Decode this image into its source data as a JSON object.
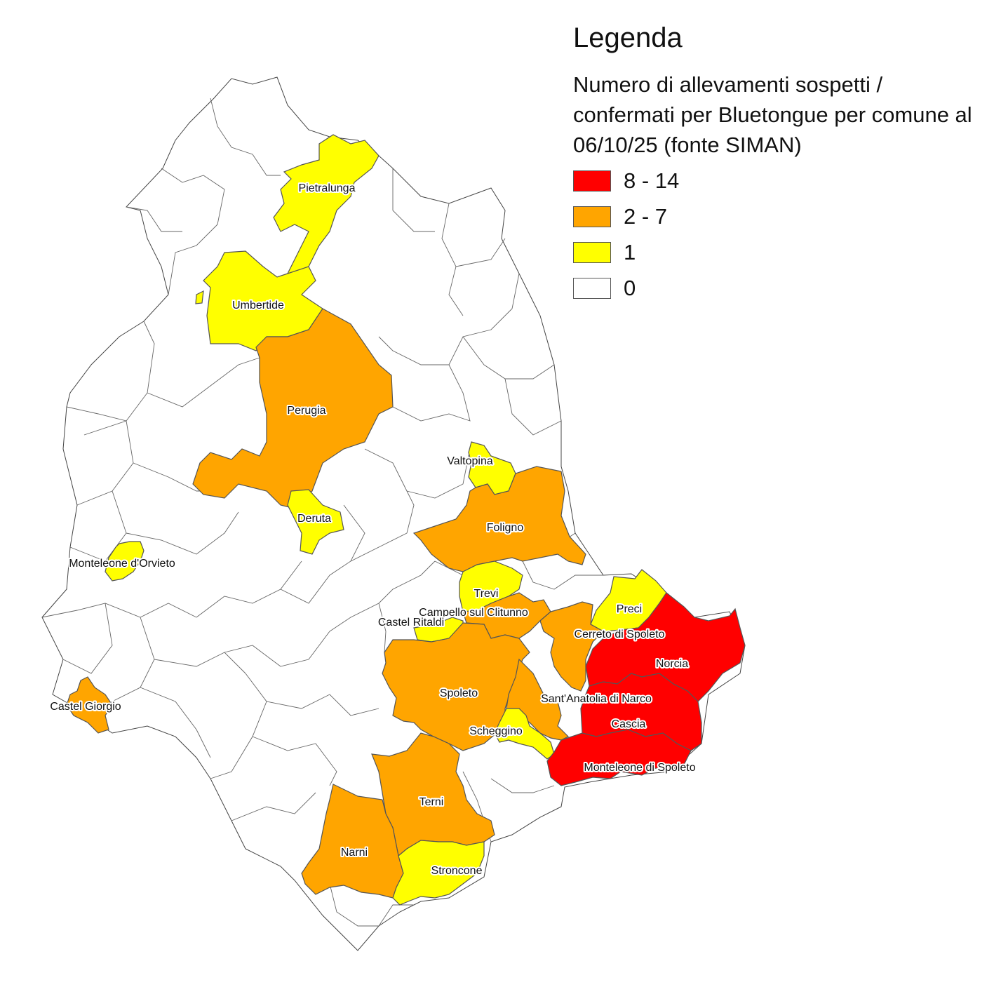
{
  "legend": {
    "title": "Legenda",
    "subtitle": "Numero di allevamenti sospetti / confermati per Bluetongue per comune al 06/10/25 (fonte SIMAN)",
    "classes": [
      {
        "label": "8 - 14",
        "color": "#ff0000"
      },
      {
        "label": "2 - 7",
        "color": "#ffa500"
      },
      {
        "label": "1",
        "color": "#ffff00"
      },
      {
        "label": "0",
        "color": "#ffffff"
      }
    ]
  },
  "comuni": [
    {
      "name": "Pietralunga",
      "class": "1"
    },
    {
      "name": "Umbertide",
      "class": "1"
    },
    {
      "name": "Perugia",
      "class": "2 - 7"
    },
    {
      "name": "Valtopina",
      "class": "1"
    },
    {
      "name": "Deruta",
      "class": "1"
    },
    {
      "name": "Foligno",
      "class": "2 - 7"
    },
    {
      "name": "Monteleone d'Orvieto",
      "class": "1"
    },
    {
      "name": "Trevi",
      "class": "1"
    },
    {
      "name": "Preci",
      "class": "1"
    },
    {
      "name": "Campello sul Clitunno",
      "class": "2 - 7"
    },
    {
      "name": "Castel Ritaldi",
      "class": "1"
    },
    {
      "name": "Cerreto di Spoleto",
      "class": "2 - 7"
    },
    {
      "name": "Norcia",
      "class": "8 - 14"
    },
    {
      "name": "Spoleto",
      "class": "2 - 7"
    },
    {
      "name": "Castel Giorgio",
      "class": "2 - 7"
    },
    {
      "name": "Sant'Anatolia di Narco",
      "class": "2 - 7"
    },
    {
      "name": "Scheggino",
      "class": "1"
    },
    {
      "name": "Cascia",
      "class": "8 - 14"
    },
    {
      "name": "Monteleone di Spoleto",
      "class": "8 - 14"
    },
    {
      "name": "Terni",
      "class": "2 - 7"
    },
    {
      "name": "Narni",
      "class": "2 - 7"
    },
    {
      "name": "Stroncone",
      "class": "1"
    }
  ]
}
